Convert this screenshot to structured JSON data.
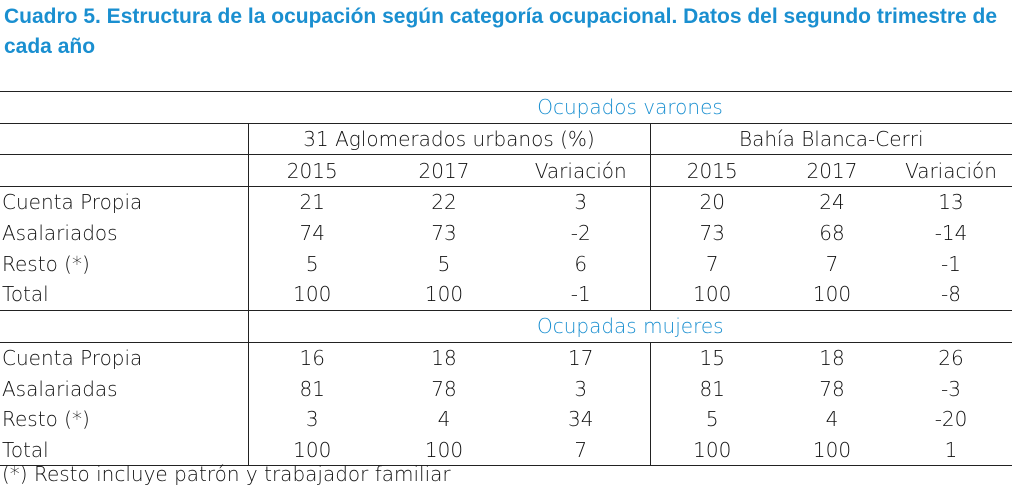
{
  "title": "Cuadro 5. Estructura de la ocupación según categoría ocupacional. Datos del segundo trimestre de cada año",
  "section_men": "Ocupados varones",
  "section_women": "Ocupadas mujeres",
  "group_1": "31 Aglomerados urbanos (%)",
  "group_2": "Bahía Blanca-Cerri",
  "columns": [
    "2015",
    "2017",
    "Variación",
    "2015",
    "2017",
    "Variación"
  ],
  "men_rows": [
    {
      "label": "Cuenta Propia",
      "values": [
        "21",
        "22",
        "3",
        "20",
        "24",
        "13"
      ]
    },
    {
      "label": "Asalariados",
      "values": [
        "74",
        "73",
        "-2",
        "73",
        "68",
        "-14"
      ]
    },
    {
      "label": "Resto (*)",
      "values": [
        "5",
        "5",
        "6",
        "7",
        "7",
        "-1"
      ]
    },
    {
      "label": "Total",
      "values": [
        "100",
        "100",
        "-1",
        "100",
        "100",
        "-8"
      ]
    }
  ],
  "women_rows": [
    {
      "label": "Cuenta Propia",
      "values": [
        "16",
        "18",
        "17",
        "15",
        "18",
        "26"
      ]
    },
    {
      "label": "Asalariadas",
      "values": [
        "81",
        "78",
        "3",
        "81",
        "78",
        "-3"
      ]
    },
    {
      "label": "Resto (*)",
      "values": [
        "3",
        "4",
        "34",
        "5",
        "4",
        "-20"
      ]
    },
    {
      "label": "Total",
      "values": [
        "100",
        "100",
        "7",
        "100",
        "100",
        "1"
      ]
    }
  ],
  "footnote": "(*) Resto incluye patrón y trabajador familiar"
}
